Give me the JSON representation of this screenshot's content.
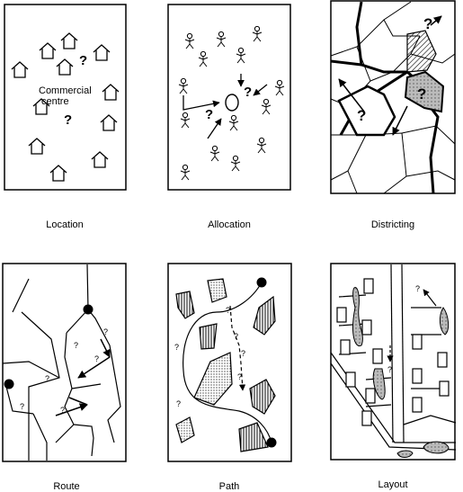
{
  "panels": [
    {
      "id": "location",
      "caption": "Location",
      "label": "Commercial centre",
      "label_lines": [
        "Commercial",
        "centre"
      ],
      "mark": "?"
    },
    {
      "id": "allocation",
      "caption": "Allocation",
      "mark": "?"
    },
    {
      "id": "districting",
      "caption": "Districting",
      "mark": "?"
    },
    {
      "id": "route",
      "caption": "Route",
      "mark": "?"
    },
    {
      "id": "path",
      "caption": "Path",
      "mark": "?"
    },
    {
      "id": "layout",
      "caption": "Layout",
      "mark": "?"
    }
  ]
}
